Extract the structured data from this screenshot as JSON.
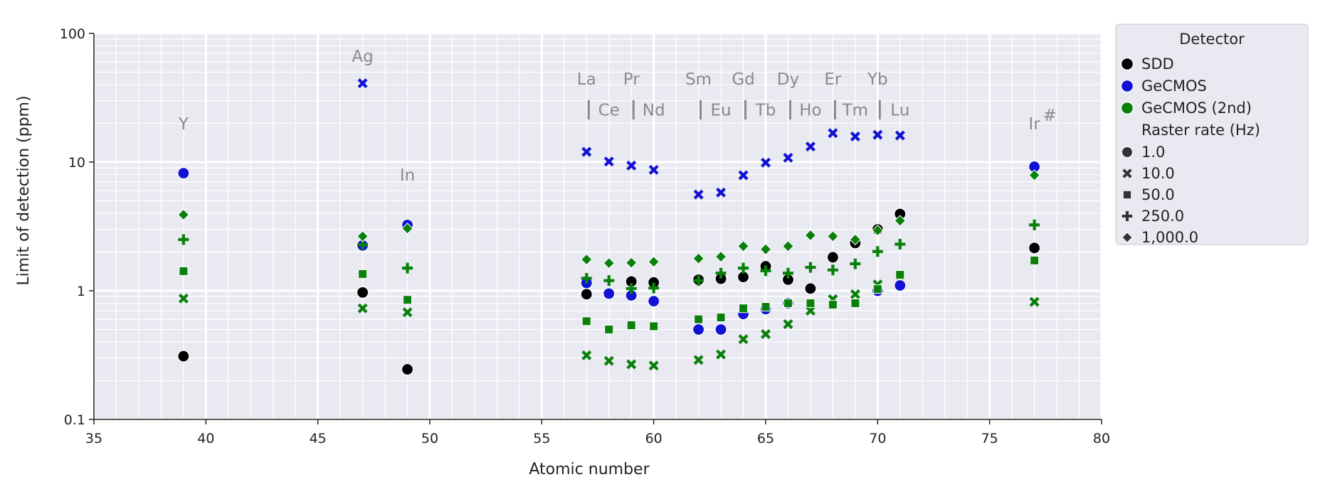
{
  "chart_data": {
    "type": "scatter",
    "xlabel": "Atomic number",
    "ylabel": "Limit of detection (ppm)",
    "xlim": [
      35,
      80
    ],
    "ylim": [
      0.1,
      100
    ],
    "y_scale": "log",
    "grid": true,
    "x_ticks": [
      "35",
      "40",
      "45",
      "50",
      "55",
      "60",
      "65",
      "70",
      "75",
      "80"
    ],
    "y_ticks": [
      "0.1",
      "1",
      "10",
      "100"
    ],
    "legend": {
      "placement": "right",
      "detector_title": "Detector",
      "detectors": [
        {
          "name": "SDD",
          "color": "#000000"
        },
        {
          "name": "GeCMOS",
          "color": "#1212d4"
        },
        {
          "name": "GeCMOS (2nd)",
          "color": "#0a800a"
        }
      ],
      "rate_title": "Raster rate (Hz)",
      "rates": [
        {
          "name": "1.0",
          "marker": "circle"
        },
        {
          "name": "10.0",
          "marker": "x"
        },
        {
          "name": "50.0",
          "marker": "square"
        },
        {
          "name": "250.0",
          "marker": "plus"
        },
        {
          "name": "1,000.0",
          "marker": "diamond"
        }
      ]
    },
    "element_labels": [
      {
        "text": "Y",
        "x": 39,
        "y": 18
      },
      {
        "text": "Ag",
        "x": 47,
        "y": 60
      },
      {
        "text": "In",
        "x": 49,
        "y": 7.2
      },
      {
        "text": "La",
        "x": 57,
        "y": 40,
        "tick": true
      },
      {
        "text": "Ce",
        "x": 58,
        "y": 23
      },
      {
        "text": "Pr",
        "x": 59,
        "y": 40,
        "tick": true
      },
      {
        "text": "Nd",
        "x": 60,
        "y": 23
      },
      {
        "text": "Sm",
        "x": 62,
        "y": 40,
        "tick": true
      },
      {
        "text": "Eu",
        "x": 63,
        "y": 23
      },
      {
        "text": "Gd",
        "x": 64,
        "y": 40,
        "tick": true
      },
      {
        "text": "Tb",
        "x": 65,
        "y": 23
      },
      {
        "text": "Dy",
        "x": 66,
        "y": 40,
        "tick": true
      },
      {
        "text": "Ho",
        "x": 67,
        "y": 23
      },
      {
        "text": "Er",
        "x": 68,
        "y": 40,
        "tick": true
      },
      {
        "text": "Tm",
        "x": 69,
        "y": 23
      },
      {
        "text": "Yb",
        "x": 70,
        "y": 40,
        "tick": true
      },
      {
        "text": "Lu",
        "x": 71,
        "y": 23
      },
      {
        "text": "Ir",
        "x": 77,
        "y": 18,
        "sup": "#"
      }
    ],
    "series": [
      {
        "detector": "SDD",
        "rate": "1.0",
        "color": "#000000",
        "marker": "circle",
        "points": [
          [
            39,
            0.31
          ],
          [
            47,
            0.97
          ],
          [
            49,
            0.245
          ],
          [
            57,
            0.94
          ],
          [
            59,
            1.18
          ],
          [
            60,
            1.16
          ],
          [
            62,
            1.22
          ],
          [
            63,
            1.24
          ],
          [
            64,
            1.28
          ],
          [
            65,
            1.55
          ],
          [
            66,
            1.22
          ],
          [
            67,
            1.04
          ],
          [
            68,
            1.82
          ],
          [
            69,
            2.35
          ],
          [
            70,
            3.0
          ],
          [
            71,
            3.95
          ],
          [
            77,
            2.15
          ]
        ]
      },
      {
        "detector": "GeCMOS",
        "rate": "1.0",
        "color": "#1212d4",
        "marker": "circle",
        "points": [
          [
            39,
            8.2
          ],
          [
            47,
            2.25
          ],
          [
            49,
            3.25
          ],
          [
            57,
            1.15
          ],
          [
            58,
            0.95
          ],
          [
            59,
            0.92
          ],
          [
            60,
            0.83
          ],
          [
            62,
            0.5
          ],
          [
            63,
            0.5
          ],
          [
            64,
            0.66
          ],
          [
            65,
            0.72
          ],
          [
            66,
            0.8
          ],
          [
            70,
            1.0
          ],
          [
            71,
            1.1
          ],
          [
            77,
            9.2
          ]
        ]
      },
      {
        "detector": "GeCMOS",
        "rate": "10.0",
        "color": "#1212d4",
        "marker": "x",
        "points": [
          [
            47,
            41
          ],
          [
            57,
            12
          ],
          [
            58,
            10.1
          ],
          [
            59,
            9.4
          ],
          [
            60,
            8.7
          ],
          [
            62,
            5.6
          ],
          [
            63,
            5.8
          ],
          [
            64,
            7.9
          ],
          [
            65,
            9.9
          ],
          [
            66,
            10.8
          ],
          [
            67,
            13.2
          ],
          [
            68,
            16.8
          ],
          [
            69,
            15.8
          ],
          [
            70,
            16.3
          ],
          [
            71,
            16.1
          ]
        ]
      },
      {
        "detector": "GeCMOS (2nd)",
        "rate": "10.0",
        "color": "#0a800a",
        "marker": "x",
        "points": [
          [
            39,
            0.87
          ],
          [
            47,
            0.73
          ],
          [
            49,
            0.68
          ],
          [
            57,
            0.315
          ],
          [
            58,
            0.285
          ],
          [
            59,
            0.268
          ],
          [
            60,
            0.262
          ],
          [
            62,
            0.29
          ],
          [
            63,
            0.32
          ],
          [
            64,
            0.42
          ],
          [
            65,
            0.46
          ],
          [
            66,
            0.55
          ],
          [
            67,
            0.7
          ],
          [
            68,
            0.86
          ],
          [
            69,
            0.94
          ],
          [
            70,
            1.12
          ],
          [
            71,
            1.32
          ],
          [
            77,
            0.82
          ]
        ]
      },
      {
        "detector": "GeCMOS (2nd)",
        "rate": "50.0",
        "color": "#0a800a",
        "marker": "square",
        "points": [
          [
            39,
            1.42
          ],
          [
            47,
            1.35
          ],
          [
            49,
            0.85
          ],
          [
            57,
            0.58
          ],
          [
            58,
            0.5
          ],
          [
            59,
            0.54
          ],
          [
            60,
            0.53
          ],
          [
            62,
            0.6
          ],
          [
            63,
            0.62
          ],
          [
            64,
            0.73
          ],
          [
            65,
            0.75
          ],
          [
            66,
            0.8
          ],
          [
            67,
            0.8
          ],
          [
            68,
            0.78
          ],
          [
            69,
            0.8
          ],
          [
            70,
            1.03
          ],
          [
            71,
            1.33
          ],
          [
            77,
            1.72
          ]
        ]
      },
      {
        "detector": "GeCMOS (2nd)",
        "rate": "250.0",
        "color": "#0a800a",
        "marker": "plus",
        "points": [
          [
            39,
            2.5
          ],
          [
            47,
            2.28
          ],
          [
            49,
            1.5
          ],
          [
            57,
            1.25
          ],
          [
            58,
            1.2
          ],
          [
            59,
            1.04
          ],
          [
            60,
            1.05
          ],
          [
            62,
            1.2
          ],
          [
            63,
            1.37
          ],
          [
            64,
            1.5
          ],
          [
            65,
            1.43
          ],
          [
            66,
            1.37
          ],
          [
            67,
            1.52
          ],
          [
            68,
            1.45
          ],
          [
            69,
            1.62
          ],
          [
            70,
            2.02
          ],
          [
            71,
            2.3
          ],
          [
            77,
            3.25
          ]
        ]
      },
      {
        "detector": "GeCMOS (2nd)",
        "rate": "1,000.0",
        "color": "#0a800a",
        "marker": "diamond",
        "points": [
          [
            39,
            3.9
          ],
          [
            47,
            2.65
          ],
          [
            49,
            3.05
          ],
          [
            57,
            1.75
          ],
          [
            58,
            1.64
          ],
          [
            59,
            1.65
          ],
          [
            60,
            1.68
          ],
          [
            62,
            1.78
          ],
          [
            63,
            1.84
          ],
          [
            64,
            2.22
          ],
          [
            65,
            2.1
          ],
          [
            66,
            2.22
          ],
          [
            67,
            2.7
          ],
          [
            68,
            2.65
          ],
          [
            69,
            2.5
          ],
          [
            70,
            2.95
          ],
          [
            71,
            3.5
          ],
          [
            77,
            7.9
          ]
        ]
      }
    ]
  }
}
